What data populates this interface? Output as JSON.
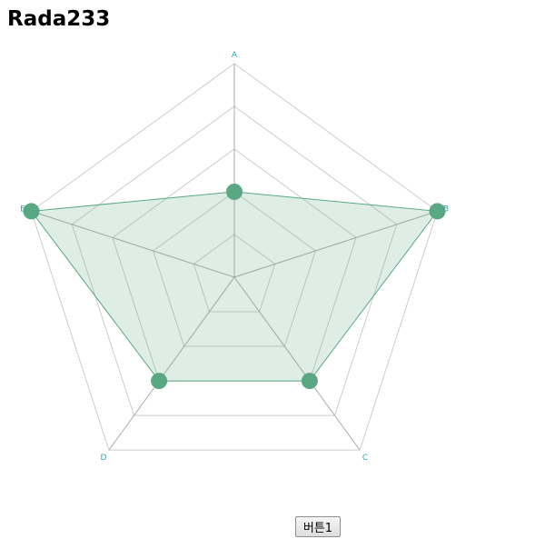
{
  "page": {
    "title": "Rada233",
    "button_label": "버튼1"
  },
  "chart_data": {
    "type": "radar",
    "axes": [
      "A",
      "B",
      "C",
      "D",
      "E"
    ],
    "range": [
      0,
      100
    ],
    "levels": 5,
    "grid": true,
    "series": [
      {
        "values": [
          40,
          100,
          60,
          60,
          100
        ],
        "color": "#5aa883"
      }
    ],
    "colors": {
      "grid": "#cccccc",
      "spoke": "#aaaaaa",
      "label": "#2aa8a8",
      "fill": "#5aa883",
      "stroke": "#5aa883",
      "point": "#5aa883"
    }
  }
}
